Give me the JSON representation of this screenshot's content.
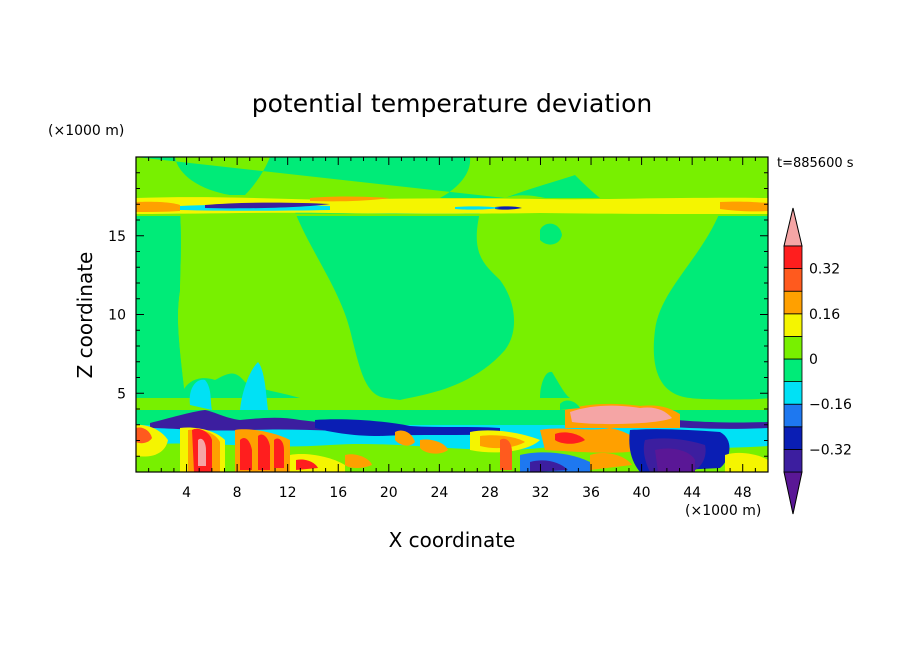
{
  "chart_data": {
    "type": "heatmap",
    "title": "potential temperature deviation",
    "xlabel": "X coordinate",
    "ylabel": "Z coordinate",
    "x_unit": "(×1000 m)",
    "y_unit": "(×1000 m)",
    "time_label": "t=885600 s",
    "xlim": [
      0,
      50
    ],
    "ylim": [
      0,
      20
    ],
    "x_ticks": [
      4,
      8,
      12,
      16,
      20,
      24,
      28,
      32,
      36,
      40,
      44,
      48
    ],
    "y_ticks": [
      5,
      10,
      15
    ],
    "colorbar": {
      "levels": [
        -0.4,
        -0.32,
        -0.24,
        -0.16,
        -0.08,
        0,
        0.08,
        0.16,
        0.24,
        0.32,
        0.4
      ],
      "tick_labels": [
        "0.32",
        "0.16",
        "0",
        "−0.16",
        "−0.32"
      ],
      "tick_values": [
        0.32,
        0.16,
        0,
        -0.16,
        -0.32
      ],
      "colors": [
        "#5a1796",
        "#3c1e9f",
        "#0a1eb4",
        "#1e78f0",
        "#00e1f5",
        "#00eb78",
        "#78f000",
        "#f5f500",
        "#ffa000",
        "#ff5a1e",
        "#ff1e1e",
        "#f5a5a5"
      ]
    }
  }
}
